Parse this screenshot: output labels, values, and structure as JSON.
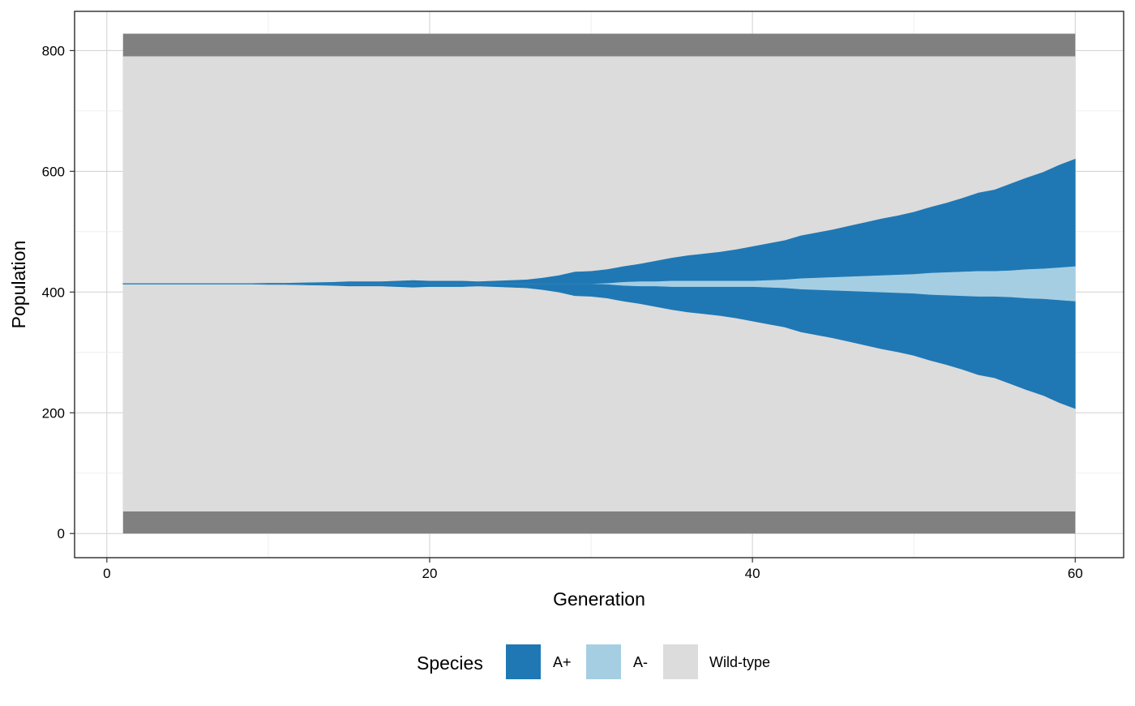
{
  "chart_data": {
    "type": "area",
    "subtype": "stacked-centered-stream",
    "title": "",
    "xlabel": "Generation",
    "ylabel": "Population",
    "xlim": [
      -2,
      63
    ],
    "ylim": [
      -40,
      865
    ],
    "x_ticks": [
      0,
      20,
      40,
      60
    ],
    "y_ticks": [
      0,
      200,
      400,
      600,
      800
    ],
    "grid": true,
    "legend": {
      "title": "Species",
      "position": "bottom",
      "entries": [
        {
          "label": "A+",
          "color": "#1f78b4"
        },
        {
          "label": "A-",
          "color": "#a6cee3"
        },
        {
          "label": "Wild-type",
          "color": "#dcdcdc"
        }
      ]
    },
    "frame_band": {
      "color": "#808080",
      "x": [
        1,
        60
      ],
      "lower": [
        0,
        37
      ],
      "upper": [
        790,
        828
      ]
    },
    "stack_center": 414,
    "stack_order_bottom_to_top": [
      "Wild-type",
      "A+",
      "A-",
      "A+",
      "Wild-type"
    ],
    "x": [
      1,
      2,
      3,
      4,
      5,
      6,
      7,
      8,
      9,
      10,
      11,
      12,
      13,
      14,
      15,
      16,
      17,
      18,
      19,
      20,
      21,
      22,
      23,
      24,
      25,
      26,
      27,
      28,
      29,
      30,
      31,
      32,
      33,
      34,
      35,
      36,
      37,
      38,
      39,
      40,
      41,
      42,
      43,
      44,
      45,
      46,
      47,
      48,
      49,
      50,
      51,
      52,
      53,
      54,
      55,
      56,
      57,
      58,
      59,
      60
    ],
    "series": [
      {
        "name": "A+",
        "color": "#1f78b4",
        "values": [
          2,
          2,
          2,
          2,
          2,
          2,
          2,
          2,
          2,
          3,
          3,
          4,
          5,
          6,
          8,
          8,
          8,
          10,
          12,
          10,
          10,
          10,
          8,
          10,
          12,
          14,
          20,
          28,
          40,
          42,
          46,
          52,
          58,
          68,
          76,
          84,
          90,
          96,
          104,
          114,
          122,
          130,
          142,
          150,
          158,
          168,
          178,
          188,
          196,
          206,
          218,
          230,
          244,
          260,
          270,
          288,
          304,
          320,
          340,
          356
        ],
        "value_note": ""
      },
      {
        "name": "A-",
        "color": "#a6cee3",
        "values": [
          0,
          0,
          0,
          0,
          0,
          0,
          0,
          0,
          0,
          0,
          0,
          0,
          0,
          0,
          0,
          0,
          0,
          0,
          0,
          0,
          0,
          0,
          0,
          0,
          0,
          0,
          0,
          0,
          0,
          0,
          2,
          6,
          8,
          8,
          10,
          10,
          10,
          10,
          10,
          10,
          12,
          14,
          18,
          20,
          22,
          24,
          26,
          28,
          30,
          32,
          36,
          38,
          40,
          42,
          42,
          44,
          48,
          50,
          54,
          58
        ]
      },
      {
        "name": "Wild-type",
        "color": "#dcdcdc",
        "values": [
          751,
          751,
          751,
          751,
          751,
          751,
          751,
          751,
          751,
          750,
          750,
          749,
          748,
          747,
          745,
          745,
          745,
          743,
          741,
          743,
          743,
          743,
          745,
          743,
          741,
          739,
          733,
          725,
          713,
          711,
          705,
          695,
          687,
          677,
          667,
          659,
          653,
          647,
          639,
          629,
          619,
          609,
          593,
          583,
          573,
          561,
          549,
          537,
          527,
          515,
          499,
          485,
          469,
          451,
          441,
          421,
          401,
          383,
          359,
          339
        ]
      }
    ],
    "series_notes": ""
  }
}
